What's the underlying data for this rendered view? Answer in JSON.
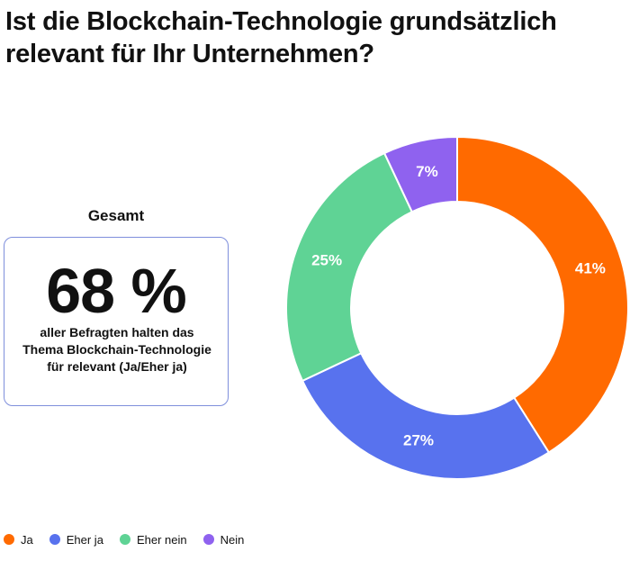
{
  "title": "Ist die Blockchain-Technologie grundsätzlich relevant für Ihr Unternehmen?",
  "summary": {
    "heading": "Gesamt",
    "value": "68 %",
    "text": "aller Befragten halten das Thema Blockchain-Technologie für relevant (Ja/Eher ja)"
  },
  "legend": [
    {
      "label": "Ja",
      "color": "#ff6a00"
    },
    {
      "label": "Eher ja",
      "color": "#5872ee"
    },
    {
      "label": "Eher nein",
      "color": "#5fd395"
    },
    {
      "label": "Nein",
      "color": "#8f62ef"
    }
  ],
  "chart_data": {
    "type": "pie",
    "variant": "donut",
    "title": "Ist die Blockchain-Technologie grundsätzlich relevant für Ihr Unternehmen?",
    "categories": [
      "Ja",
      "Eher ja",
      "Eher nein",
      "Nein"
    ],
    "values": [
      41,
      27,
      25,
      7
    ],
    "labels": [
      "41%",
      "27%",
      "25%",
      "7%"
    ],
    "colors": [
      "#ff6a00",
      "#5872ee",
      "#5fd395",
      "#8f62ef"
    ],
    "legend_position": "bottom-left"
  }
}
